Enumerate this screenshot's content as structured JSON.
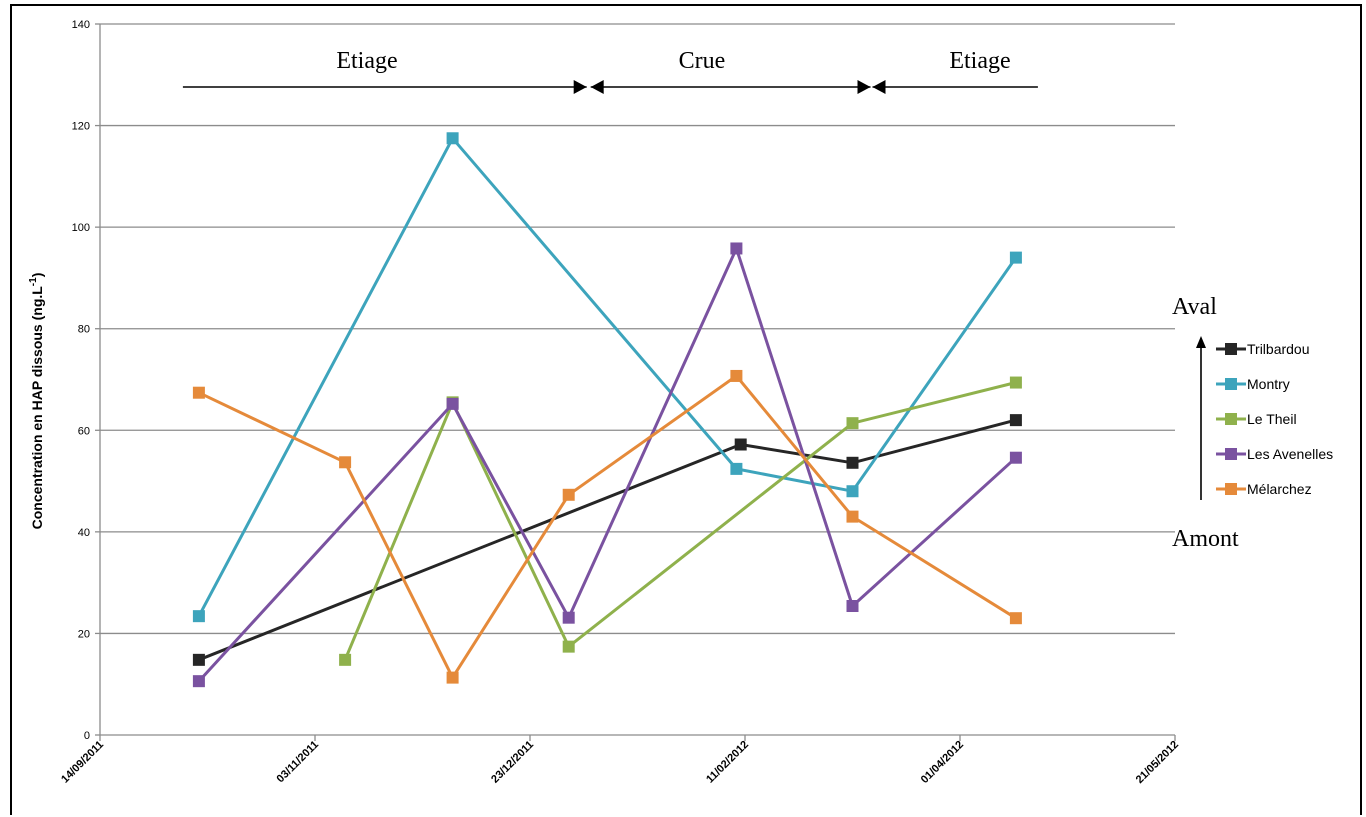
{
  "chart_data": {
    "type": "line",
    "title": "",
    "xlabel": "",
    "ylabel": "Concentration en HAP dissous (ng.L",
    "ylabel_sup": "-1",
    "ylabel_close": ")",
    "ylim": [
      0,
      140
    ],
    "yticks": [
      0,
      20,
      40,
      60,
      80,
      100,
      120,
      140
    ],
    "xlim": [
      "2011-09-14",
      "2012-05-21"
    ],
    "xticks": [
      "2011-09-14",
      "2011-11-03",
      "2011-12-23",
      "2012-02-11",
      "2012-04-01",
      "2012-05-21"
    ],
    "xtick_labels": [
      "14/09/2011",
      "03/11/2011",
      "23/12/2011",
      "11/02/2012",
      "01/04/2012",
      "21/05/2012"
    ],
    "grid": true,
    "legend_position": "right",
    "series": [
      {
        "name": "Trilbardou",
        "color": "#262626",
        "points": [
          {
            "x": "2011-10-07",
            "y": 14.8
          },
          {
            "x": "2012-02-10",
            "y": 57.2
          },
          {
            "x": "2012-03-07",
            "y": 53.6
          },
          {
            "x": "2012-04-14",
            "y": 62.0
          }
        ]
      },
      {
        "name": "Montry",
        "color": "#3da4bc",
        "points": [
          {
            "x": "2011-10-07",
            "y": 23.4
          },
          {
            "x": "2011-12-05",
            "y": 117.5
          },
          {
            "x": "2012-02-09",
            "y": 52.4
          },
          {
            "x": "2012-03-07",
            "y": 48.0
          },
          {
            "x": "2012-04-14",
            "y": 94.0
          }
        ]
      },
      {
        "name": "Le Theil",
        "color": "#8fb14c",
        "points": [
          {
            "x": "2011-11-10",
            "y": 14.8
          },
          {
            "x": "2011-12-05",
            "y": 65.5
          },
          {
            "x": "2012-01-01",
            "y": 17.4
          },
          {
            "x": "2012-03-07",
            "y": 61.4
          },
          {
            "x": "2012-04-14",
            "y": 69.4
          }
        ]
      },
      {
        "name": "Les Avenelles",
        "color": "#7a52a0",
        "points": [
          {
            "x": "2011-10-07",
            "y": 10.6
          },
          {
            "x": "2011-12-05",
            "y": 65.2
          },
          {
            "x": "2012-01-01",
            "y": 23.1
          },
          {
            "x": "2012-02-09",
            "y": 95.8
          },
          {
            "x": "2012-03-07",
            "y": 25.4
          },
          {
            "x": "2012-04-14",
            "y": 54.6
          }
        ]
      },
      {
        "name": "Mélarchez",
        "color": "#e58a3a",
        "points": [
          {
            "x": "2011-10-07",
            "y": 67.4
          },
          {
            "x": "2011-11-10",
            "y": 53.7
          },
          {
            "x": "2011-12-05",
            "y": 11.3
          },
          {
            "x": "2012-01-01",
            "y": 47.3
          },
          {
            "x": "2012-02-09",
            "y": 70.7
          },
          {
            "x": "2012-03-07",
            "y": 43.0
          },
          {
            "x": "2012-04-14",
            "y": 23.0
          }
        ]
      }
    ],
    "annotations": {
      "periods": [
        {
          "label": "Etiage",
          "from": "2011-10-07",
          "to": "2012-01-01"
        },
        {
          "label": "Crue",
          "from": "2012-01-01",
          "to": "2012-03-07"
        },
        {
          "label": "Etiage",
          "from": "2012-03-07",
          "to": "2012-04-14"
        }
      ],
      "gradient_top": "Aval",
      "gradient_bottom": "Amont"
    }
  }
}
